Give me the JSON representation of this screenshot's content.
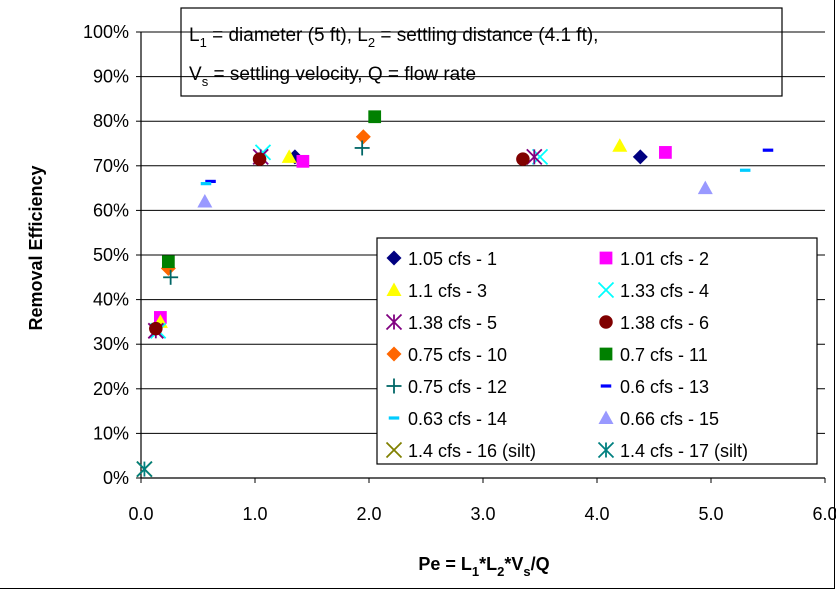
{
  "chart_data": {
    "type": "scatter",
    "title": "",
    "xlabel": {
      "main": "Pe = L",
      "s1": "1",
      "m2": "*L",
      "s2": "2",
      "m3": "*V",
      "s3": "s",
      "m4": "/Q"
    },
    "ylabel": "Removal Efficiency",
    "xlim": [
      0,
      6
    ],
    "ylim": [
      0,
      100
    ],
    "x_ticks": [
      "0.0",
      "1.0",
      "2.0",
      "3.0",
      "4.0",
      "5.0",
      "6.0"
    ],
    "y_ticks": [
      "0%",
      "10%",
      "20%",
      "30%",
      "40%",
      "50%",
      "60%",
      "70%",
      "80%",
      "90%",
      "100%"
    ],
    "grid": "horizontal",
    "legend_position": "bottom-right inside",
    "annotation": {
      "line1": {
        "a": "L",
        "a_sub": "1",
        "b": " = diameter (5 ft), L",
        "b_sub": "2",
        "c": " = settling distance (4.1 ft),"
      },
      "line2": {
        "a": "V",
        "a_sub": "s",
        "b": " = settling velocity, Q = flow rate"
      }
    },
    "series": [
      {
        "name": "1.05 cfs - 1",
        "marker": "diamond",
        "color": "#000080",
        "points": [
          [
            1.35,
            72
          ],
          [
            4.38,
            72
          ]
        ]
      },
      {
        "name": "1.01 cfs - 2",
        "marker": "square",
        "color": "#ff00ff",
        "points": [
          [
            0.17,
            36
          ],
          [
            1.42,
            71
          ],
          [
            4.6,
            73
          ]
        ]
      },
      {
        "name": "1.1 cfs - 3",
        "marker": "triangle",
        "color": "#ffff00",
        "points": [
          [
            0.17,
            35
          ],
          [
            1.3,
            72
          ],
          [
            4.2,
            74.5
          ]
        ]
      },
      {
        "name": "1.33 cfs - 4",
        "marker": "x",
        "color": "#00ffff",
        "points": [
          [
            0.15,
            33
          ],
          [
            1.07,
            73
          ],
          [
            3.5,
            72
          ]
        ]
      },
      {
        "name": "1.38 cfs - 5",
        "marker": "star",
        "color": "#800080",
        "points": [
          [
            0.13,
            33
          ],
          [
            1.05,
            72
          ],
          [
            3.45,
            72
          ]
        ]
      },
      {
        "name": "1.38 cfs - 6",
        "marker": "circle",
        "color": "#800000",
        "points": [
          [
            0.13,
            33.5
          ],
          [
            1.04,
            71.5
          ],
          [
            3.35,
            71.5
          ]
        ]
      },
      {
        "name": "0.75 cfs - 10",
        "marker": "diamond",
        "color": "#ff6600",
        "points": [
          [
            0.24,
            47
          ],
          [
            1.95,
            76.5
          ]
        ]
      },
      {
        "name": "0.7 cfs - 11",
        "marker": "square",
        "color": "#008000",
        "points": [
          [
            0.24,
            48.5
          ],
          [
            2.05,
            81
          ]
        ]
      },
      {
        "name": "0.75 cfs - 12",
        "marker": "plus",
        "color": "#006666",
        "points": [
          [
            0.26,
            45
          ],
          [
            1.94,
            74
          ]
        ]
      },
      {
        "name": "0.6 cfs - 13",
        "marker": "dash",
        "color": "#0000ff",
        "points": [
          [
            0.61,
            66.5
          ],
          [
            5.5,
            73.5
          ]
        ]
      },
      {
        "name": "0.63 cfs - 14",
        "marker": "dash",
        "color": "#00ccff",
        "points": [
          [
            0.57,
            66
          ],
          [
            5.3,
            69
          ]
        ]
      },
      {
        "name": "0.66 cfs - 15",
        "marker": "triangle",
        "color": "#9999ff",
        "points": [
          [
            0.56,
            62
          ],
          [
            4.95,
            65
          ]
        ]
      },
      {
        "name": "1.4 cfs - 16 (silt)",
        "marker": "x",
        "color": "#808000",
        "points": [
          [
            0.03,
            2
          ]
        ]
      },
      {
        "name": "1.4 cfs - 17 (silt)",
        "marker": "star",
        "color": "#008080",
        "points": [
          [
            0.03,
            2
          ]
        ]
      }
    ]
  }
}
